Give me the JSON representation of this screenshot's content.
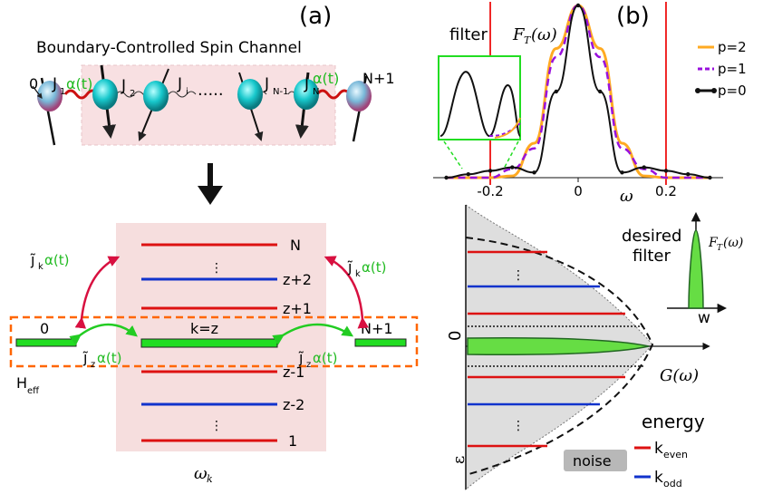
{
  "panel_a": {
    "label": "(a)",
    "title": "Boundary-Controlled Spin Channel",
    "chain": {
      "left_site": "0",
      "right_site": "N+1",
      "j1": "J",
      "j1_sub": "1",
      "j1_alpha": "α(t)",
      "j2": "J",
      "j2_sub": "2",
      "ji": "J",
      "ji_sub": "i",
      "dots": "·····",
      "jn1": "J",
      "jn1_sub": "N-1",
      "jn": "J",
      "jn_sub": "N",
      "jn_alpha": "α(t)"
    },
    "levels": {
      "top": "N",
      "z2": "z+2",
      "z1": "z+1",
      "center": "k=z",
      "zm1": "z-1",
      "zm2": "z-2",
      "bottom": "1",
      "left": "0",
      "right": "N+1",
      "jk": "j̃",
      "jk_sub": "k",
      "jz_sub": "z",
      "alpha": "α(t)",
      "heff": "H",
      "heff_sub": "eff",
      "omega_k": "ω",
      "omega_k_sub": "k"
    },
    "colors": {
      "red": "#dd1111",
      "blue": "#1133cc",
      "green": "#22dd22",
      "orange": "#ff6600",
      "pink": "#f6dede"
    }
  },
  "panel_b": {
    "label": "(b)",
    "filter_label": "filter",
    "ft_label": "F",
    "ft_sub": "T",
    "ft_arg": "(ω)",
    "legend": [
      "p=2",
      "p=1",
      "p=0"
    ],
    "legend_colors": [
      "#ffaa22",
      "#9911dd",
      "#111111"
    ],
    "xticks": [
      "-0.2",
      "0",
      "0.2"
    ],
    "xlabel": "ω",
    "desired_filter": [
      "desired",
      "filter"
    ],
    "w_label": "w",
    "g_label": "G(ω)",
    "zero_label": "0",
    "epsilon_label": "ε",
    "noise_label": "noise",
    "energy_label": "energy",
    "k_even": "k",
    "k_even_sub": "even",
    "k_odd": "k",
    "k_odd_sub": "odd"
  },
  "chart_data": {
    "type": "line",
    "x": [
      -0.3,
      -0.25,
      -0.2,
      -0.15,
      -0.1,
      -0.05,
      0,
      0.05,
      0.1,
      0.15,
      0.2,
      0.25,
      0.3
    ],
    "series": [
      {
        "name": "p=2",
        "values": [
          0.0,
          0.0,
          0.0,
          0.01,
          0.2,
          0.75,
          1.0,
          0.75,
          0.2,
          0.01,
          0.0,
          0.0,
          0.0
        ]
      },
      {
        "name": "p=1",
        "values": [
          0.0,
          0.0,
          0.0,
          0.05,
          0.17,
          0.7,
          1.0,
          0.7,
          0.17,
          0.05,
          0.0,
          0.0,
          0.0
        ]
      },
      {
        "name": "p=0",
        "values": [
          0.0,
          0.02,
          0.04,
          0.06,
          0.03,
          0.5,
          1.0,
          0.5,
          0.03,
          0.06,
          0.04,
          0.02,
          0.0
        ]
      }
    ],
    "xlim": [
      -0.33,
      0.33
    ],
    "xticks": [
      -0.2,
      0,
      0.2
    ],
    "vlines": [
      -0.2,
      0.2
    ],
    "ylim": [
      0,
      1
    ],
    "legend_position": "top-right"
  }
}
